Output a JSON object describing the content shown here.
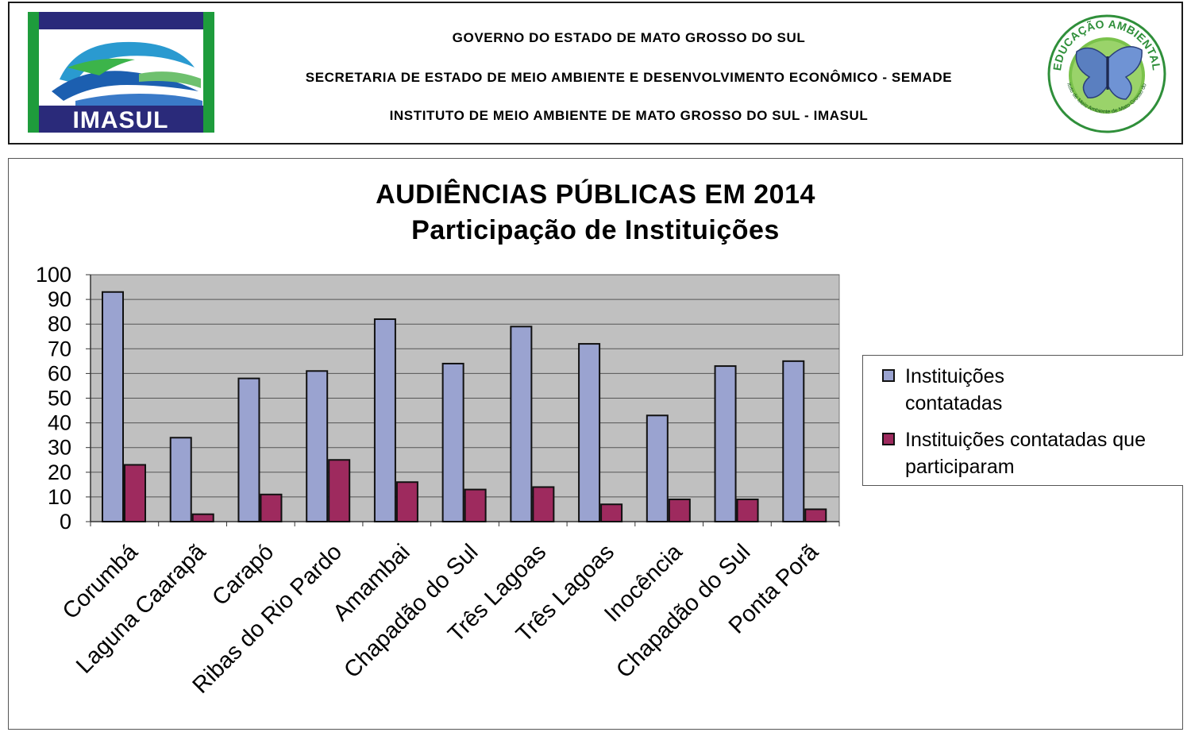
{
  "header": {
    "logo_left_text": "IMASUL",
    "line1": "GOVERNO DO ESTADO DE MATO GROSSO DO SUL",
    "line2": "SECRETARIA DE ESTADO DE MEIO AMBIENTE E DESENVOLVIMENTO ECONÔMICO - SEMADE",
    "line3": "INSTITUTO DE MEIO AMBIENTE DE MATO GROSSO DO SUL - IMASUL",
    "logo_right_arc_text": "EDUCAÇÃO AMBIENTAL",
    "logo_right_small_text": "Instituto de Meio Ambiente de Mato Grosso do Sul"
  },
  "chart_data": {
    "type": "bar",
    "title": "AUDIÊNCIAS PÚBLICAS EM 2014",
    "subtitle": "Participação de Instituições",
    "categories": [
      "Corumbá",
      "Laguna Caarapã",
      "Carapó",
      "Ribas do Rio Pardo",
      "Amambai",
      "Chapadão do Sul",
      "Três Lagoas",
      "Três Lagoas",
      "Inocência",
      "Chapadão do Sul",
      "Ponta Porã"
    ],
    "series": [
      {
        "name": "Instituições contatadas",
        "color": "#9aa3d0",
        "values": [
          93,
          34,
          58,
          61,
          82,
          64,
          79,
          72,
          43,
          63,
          65
        ]
      },
      {
        "name": "Instituições contatadas que participaram",
        "color": "#9e2a5e",
        "values": [
          23,
          3,
          11,
          25,
          16,
          13,
          14,
          7,
          9,
          9,
          5
        ]
      }
    ],
    "ylim": [
      0,
      100
    ],
    "yticks": [
      0,
      10,
      20,
      30,
      40,
      50,
      60,
      70,
      80,
      90,
      100
    ],
    "grid": true,
    "plot_background": "#c0c0c0",
    "legend_position": "right"
  }
}
